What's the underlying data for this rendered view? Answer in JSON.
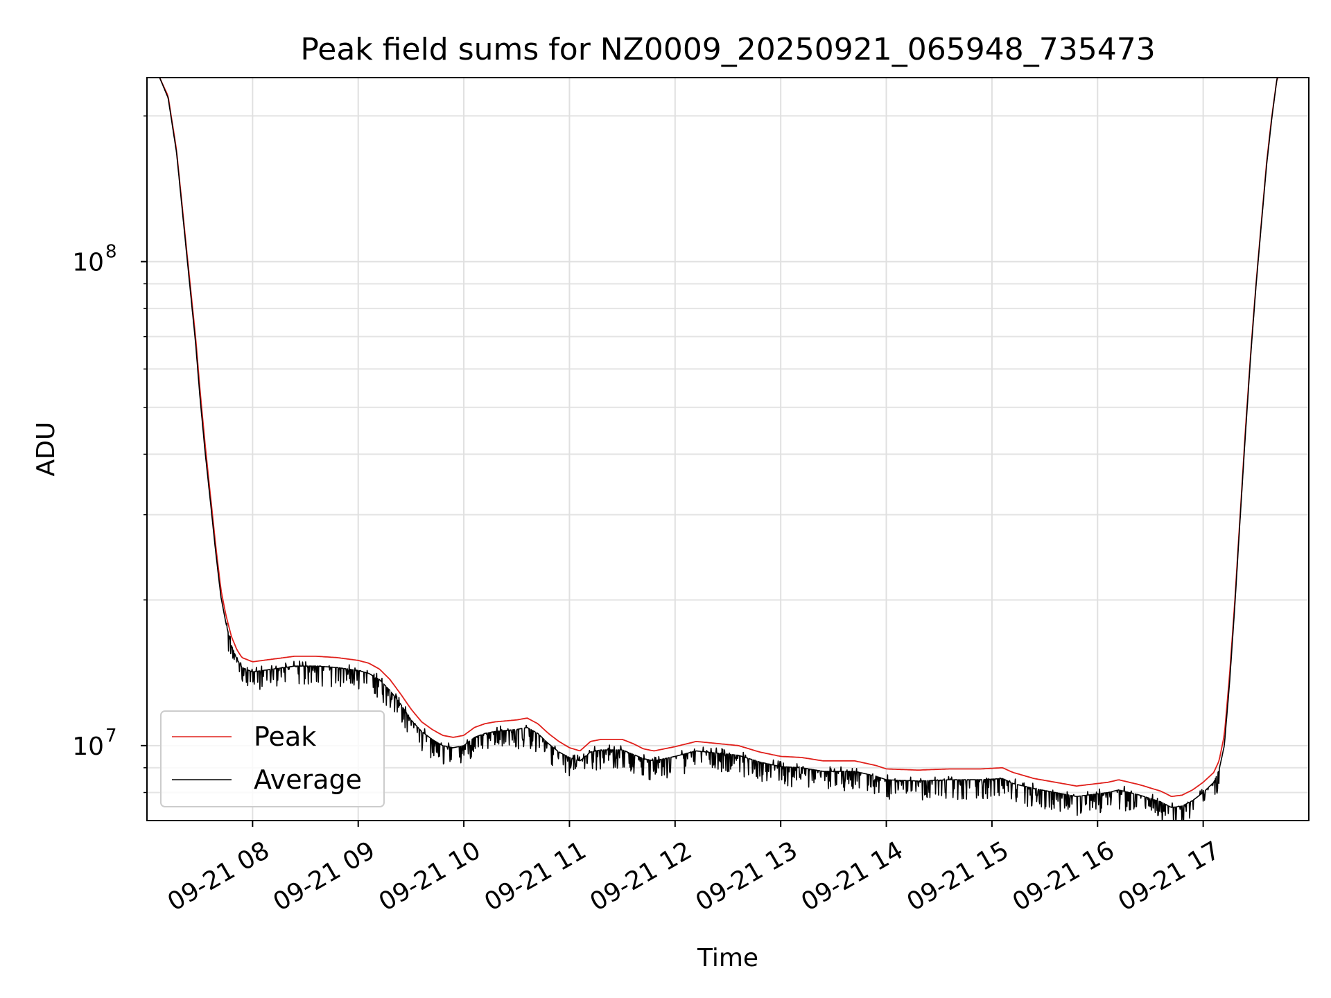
{
  "chart_data": {
    "type": "line",
    "title": "Peak field sums for NZ0009_20250921_065948_735473",
    "xlabel": "Time",
    "ylabel": "ADU",
    "yscale": "log",
    "xlim": [
      7.0,
      18.0
    ],
    "ylim": [
      7000000,
      240000000
    ],
    "grid": true,
    "x_ticks": [
      8,
      9,
      10,
      11,
      12,
      13,
      14,
      15,
      16,
      17
    ],
    "x_tick_labels": [
      "09-21 08",
      "09-21 09",
      "09-21 10",
      "09-21 11",
      "09-21 12",
      "09-21 13",
      "09-21 14",
      "09-21 15",
      "09-21 16",
      "09-21 17"
    ],
    "y_major_ticks": [
      10000000,
      100000000
    ],
    "y_major_tick_labels": [
      {
        "base": "10",
        "exp": "7"
      },
      {
        "base": "10",
        "exp": "8"
      }
    ],
    "y_minor_ticks": [
      8000000,
      9000000,
      20000000,
      30000000,
      40000000,
      50000000,
      60000000,
      70000000,
      80000000,
      90000000,
      200000000
    ],
    "legend": {
      "position": "lower-left",
      "entries": [
        {
          "name": "Peak",
          "color": "#e0201b"
        },
        {
          "name": "Average",
          "color": "#000000"
        }
      ]
    },
    "series": [
      {
        "name": "Peak",
        "color": "#e0201b",
        "x": [
          7.12,
          7.2,
          7.28,
          7.35,
          7.42,
          7.46,
          7.5,
          7.55,
          7.6,
          7.65,
          7.7,
          7.75,
          7.8,
          7.85,
          7.9,
          8.0,
          8.1,
          8.2,
          8.4,
          8.6,
          8.8,
          9.0,
          9.1,
          9.2,
          9.3,
          9.4,
          9.5,
          9.6,
          9.7,
          9.8,
          9.9,
          10.0,
          10.1,
          10.2,
          10.3,
          10.5,
          10.6,
          10.7,
          10.8,
          10.9,
          11.0,
          11.1,
          11.2,
          11.3,
          11.5,
          11.6,
          11.7,
          11.8,
          12.0,
          12.2,
          12.4,
          12.6,
          12.8,
          13.0,
          13.2,
          13.4,
          13.7,
          13.9,
          14.0,
          14.3,
          14.6,
          14.9,
          15.1,
          15.2,
          15.4,
          15.6,
          15.8,
          15.9,
          16.1,
          16.2,
          16.4,
          16.6,
          16.7,
          16.8,
          16.9,
          17.0,
          17.1,
          17.15,
          17.2,
          17.25,
          17.3,
          17.35,
          17.4,
          17.45,
          17.5,
          17.55,
          17.6,
          17.65,
          17.7,
          17.78,
          17.85
        ],
        "values": [
          240000000,
          220000000,
          170000000,
          120000000,
          85000000,
          70000000,
          55000000,
          42000000,
          33000000,
          26000000,
          21000000,
          18500000,
          16800000,
          15800000,
          15200000,
          14900000,
          15000000,
          15100000,
          15300000,
          15300000,
          15200000,
          15000000,
          14800000,
          14400000,
          13700000,
          12800000,
          11900000,
          11200000,
          10800000,
          10500000,
          10400000,
          10500000,
          10900000,
          11100000,
          11200000,
          11300000,
          11400000,
          11100000,
          10600000,
          10200000,
          9900000,
          9750000,
          10200000,
          10300000,
          10300000,
          10100000,
          9850000,
          9750000,
          9950000,
          10200000,
          10100000,
          10000000,
          9700000,
          9500000,
          9450000,
          9300000,
          9300000,
          9100000,
          8950000,
          8900000,
          8950000,
          8950000,
          9000000,
          8800000,
          8550000,
          8400000,
          8250000,
          8300000,
          8400000,
          8500000,
          8300000,
          8050000,
          7850000,
          7900000,
          8100000,
          8400000,
          8800000,
          9300000,
          10500000,
          14000000,
          20000000,
          30000000,
          45000000,
          65000000,
          90000000,
          120000000,
          160000000,
          200000000,
          240000000,
          240000000,
          240000000
        ]
      },
      {
        "name": "Average",
        "color": "#000000",
        "x": [
          7.12,
          7.2,
          7.28,
          7.35,
          7.42,
          7.46,
          7.5,
          7.55,
          7.6,
          7.65,
          7.7,
          7.75,
          7.8,
          7.85,
          7.9,
          8.0,
          8.1,
          8.2,
          8.4,
          8.6,
          8.8,
          9.0,
          9.1,
          9.2,
          9.3,
          9.4,
          9.5,
          9.6,
          9.7,
          9.8,
          9.9,
          10.0,
          10.1,
          10.2,
          10.3,
          10.5,
          10.6,
          10.7,
          10.8,
          10.9,
          11.0,
          11.1,
          11.2,
          11.3,
          11.5,
          11.6,
          11.7,
          11.8,
          12.0,
          12.2,
          12.4,
          12.6,
          12.8,
          13.0,
          13.2,
          13.4,
          13.7,
          13.9,
          14.0,
          14.3,
          14.6,
          14.9,
          15.1,
          15.2,
          15.4,
          15.6,
          15.8,
          15.9,
          16.1,
          16.2,
          16.4,
          16.6,
          16.7,
          16.8,
          16.9,
          17.0,
          17.1,
          17.15,
          17.2,
          17.25,
          17.3,
          17.35,
          17.4,
          17.45,
          17.5,
          17.55,
          17.6,
          17.65,
          17.7,
          17.78,
          17.85
        ],
        "values": [
          240000000,
          218000000,
          168000000,
          118000000,
          83000000,
          68000000,
          53000000,
          40500000,
          32000000,
          25200000,
          20300000,
          17800000,
          16100000,
          15100000,
          14500000,
          14200000,
          14300000,
          14400000,
          14600000,
          14600000,
          14500000,
          14300000,
          14100000,
          13700000,
          13000000,
          12200000,
          11300000,
          10700000,
          10300000,
          10000000,
          9900000,
          10000000,
          10400000,
          10600000,
          10700000,
          10800000,
          10900000,
          10600000,
          10100000,
          9700000,
          9450000,
          9300000,
          9700000,
          9800000,
          9800000,
          9600000,
          9400000,
          9300000,
          9500000,
          9750000,
          9650000,
          9550000,
          9250000,
          9050000,
          9000000,
          8850000,
          8850000,
          8650000,
          8500000,
          8450000,
          8500000,
          8500000,
          8550000,
          8350000,
          8150000,
          8000000,
          7850000,
          7900000,
          8000000,
          8100000,
          7900000,
          7650000,
          7450000,
          7500000,
          7700000,
          8000000,
          8400000,
          8900000,
          10000000,
          13500000,
          19500000,
          29500000,
          44000000,
          64000000,
          89000000,
          119000000,
          158000000,
          198000000,
          240000000,
          240000000,
          240000000
        ]
      }
    ]
  }
}
